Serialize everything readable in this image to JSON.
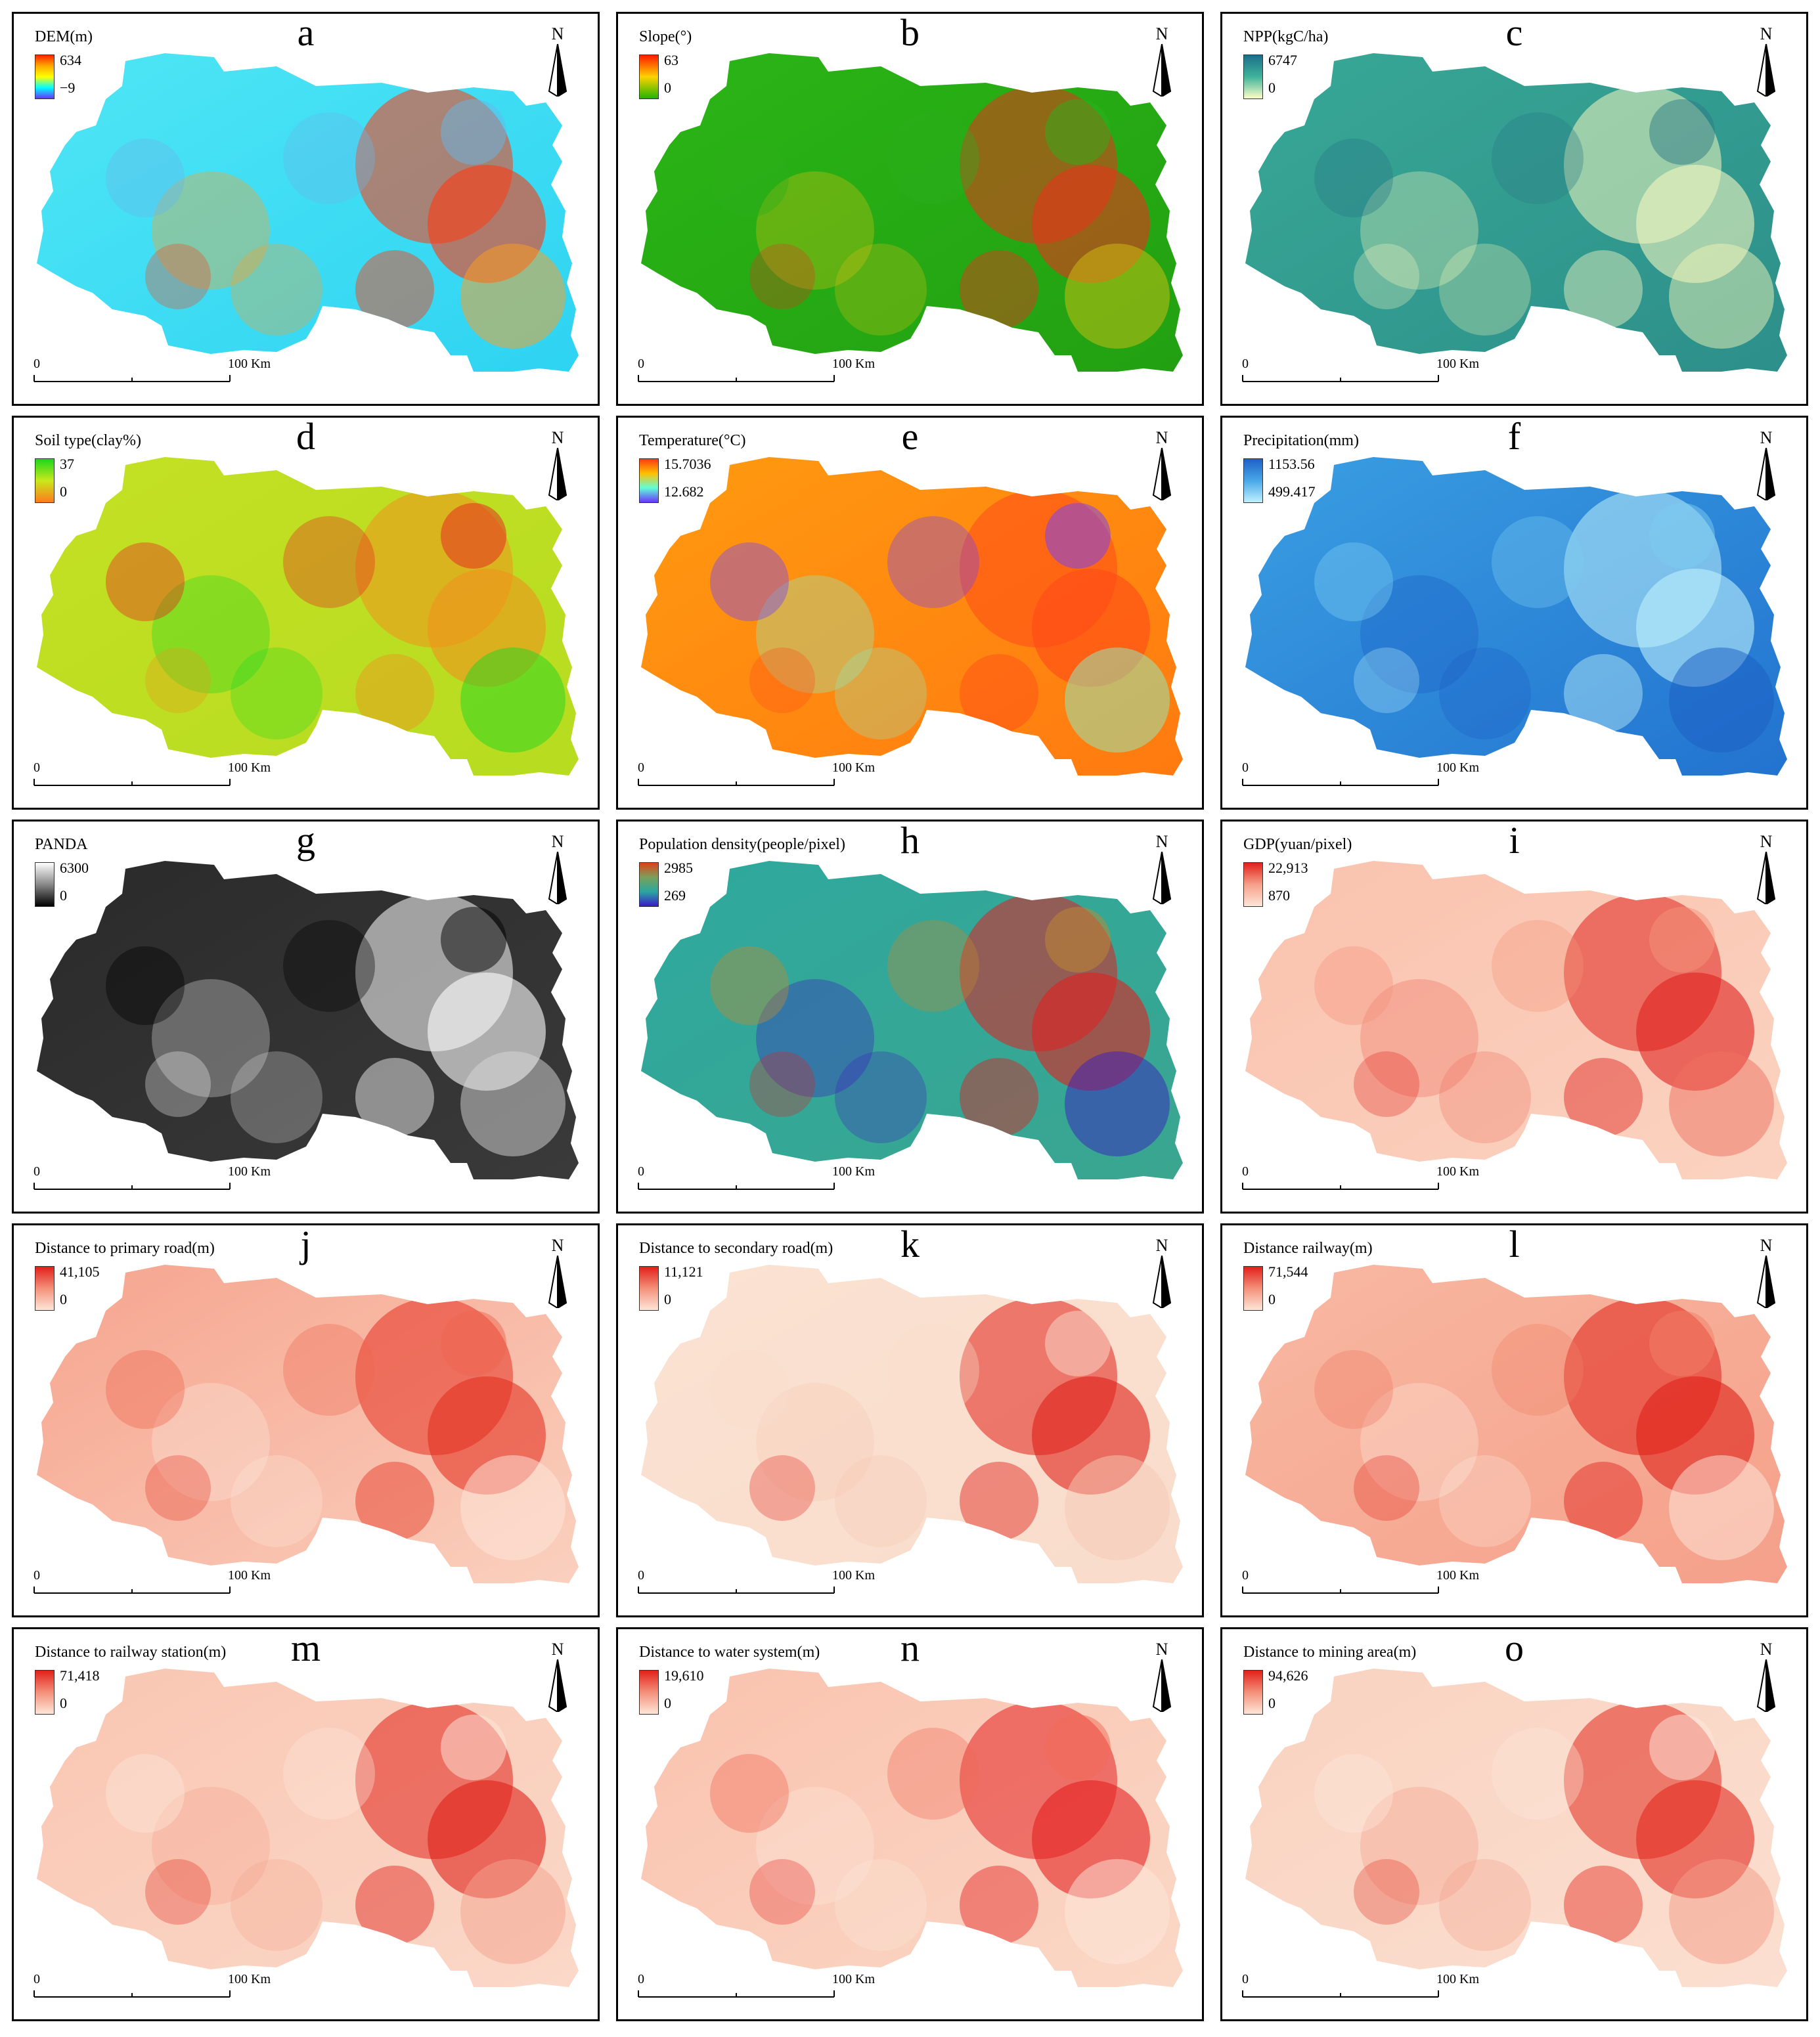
{
  "scalebar": {
    "zero": "0",
    "max": "100 Km"
  },
  "north": {
    "letter": "N"
  },
  "panels": [
    {
      "letter": "a",
      "title": "DEM(m)",
      "max": "634",
      "min": "−9",
      "ramp": [
        "#ff2200",
        "#ffaa00",
        "#ffff00",
        "#00ffff",
        "#6633ff"
      ],
      "base": [
        "#4fe6f5",
        "#2ed3f2"
      ],
      "accent": [
        "#ff3b10",
        "#ffa020",
        "#66b8e8"
      ]
    },
    {
      "letter": "b",
      "title": "Slope(°)",
      "max": "63",
      "min": "0",
      "ramp": [
        "#ff1a00",
        "#ffd200",
        "#22b500"
      ],
      "base": [
        "#2bb516",
        "#22a012"
      ],
      "accent": [
        "#e8331a",
        "#d4c012",
        "#2cb01c"
      ]
    },
    {
      "letter": "c",
      "title": "NPP(kgC/ha)",
      "max": "6747",
      "min": "0",
      "ramp": [
        "#1b6e8a",
        "#3fb39a",
        "#fdfec8"
      ],
      "base": [
        "#38a896",
        "#2d8f8a"
      ],
      "accent": [
        "#f4f7c0",
        "#eef4b6",
        "#2b7b86"
      ]
    },
    {
      "letter": "d",
      "title": "Soil type(clay%)",
      "max": "37",
      "min": "0",
      "ramp": [
        "#1bd81b",
        "#c8e81b",
        "#ff7a1b"
      ],
      "base": [
        "#c4e024",
        "#b7dc20"
      ],
      "accent": [
        "#f0921c",
        "#1fd61f",
        "#e8201f"
      ]
    },
    {
      "letter": "e",
      "title": "Temperature(°C)",
      "max": "15.7036",
      "min": "12.682",
      "ramp": [
        "#ff3a10",
        "#ffc000",
        "#60ffd8",
        "#6a33ff"
      ],
      "base": [
        "#ff9a10",
        "#ff7a10"
      ],
      "accent": [
        "#ff4a18",
        "#8cf0c0",
        "#7040ff"
      ]
    },
    {
      "letter": "f",
      "title": "Precipitation(mm)",
      "max": "1153.56",
      "min": "499.417",
      "ramp": [
        "#1f5fc8",
        "#48a8e8",
        "#bff0ff"
      ],
      "base": [
        "#3a9ee2",
        "#2273cf"
      ],
      "accent": [
        "#bdf0fb",
        "#1b5dc4",
        "#7cccf2"
      ]
    },
    {
      "letter": "g",
      "title": "PANDA",
      "max": "6300",
      "min": "0",
      "ramp": [
        "#ffffff",
        "#888888",
        "#000000"
      ],
      "base": [
        "#2a2a2a",
        "#3a3a3a"
      ],
      "accent": [
        "#ffffff",
        "#d8d8d8",
        "#000000"
      ]
    },
    {
      "letter": "h",
      "title": "Population density(people/pixel)",
      "max": "2985",
      "min": "269",
      "ramp": [
        "#e0401a",
        "#7aa05a",
        "#2aa6a0",
        "#3a1ac8"
      ],
      "base": [
        "#2ea89e",
        "#3aa690"
      ],
      "accent": [
        "#e02020",
        "#3a20c0",
        "#c08a30"
      ]
    },
    {
      "letter": "i",
      "title": "GDP(yuan/pixel)",
      "max": "22,913",
      "min": "870",
      "ramp": [
        "#e2201a",
        "#f6a08a",
        "#fde6d8"
      ],
      "base": [
        "#f9c2ae",
        "#fbd3c0"
      ],
      "accent": [
        "#e0201c",
        "#ee7060",
        "#f4947c"
      ]
    },
    {
      "letter": "j",
      "title": "Distance to primary road(m)",
      "max": "41,105",
      "min": "0",
      "ramp": [
        "#e2201a",
        "#f4907a",
        "#fde6d8"
      ],
      "base": [
        "#f6a48e",
        "#fad0be"
      ],
      "accent": [
        "#e53020",
        "#fde8dc",
        "#ee6650"
      ]
    },
    {
      "letter": "k",
      "title": "Distance to secondary road(m)",
      "max": "11,121",
      "min": "0",
      "ramp": [
        "#e2201a",
        "#f4907a",
        "#fde6d8"
      ],
      "base": [
        "#fbe2d2",
        "#f9dccb"
      ],
      "accent": [
        "#e02018",
        "#f5c8b4",
        "#f9dccb"
      ]
    },
    {
      "letter": "l",
      "title": "Distance railway(m)",
      "max": "71,544",
      "min": "0",
      "ramp": [
        "#e2201a",
        "#f4907a",
        "#fde6d8"
      ],
      "base": [
        "#f8b8a2",
        "#f5a08a"
      ],
      "accent": [
        "#e02018",
        "#fde8dc",
        "#f08068"
      ]
    },
    {
      "letter": "m",
      "title": "Distance to railway station(m)",
      "max": "71,418",
      "min": "0",
      "ramp": [
        "#e2201a",
        "#f4907a",
        "#fde6d8"
      ],
      "base": [
        "#f9c6b2",
        "#fbd8c8"
      ],
      "accent": [
        "#e02018",
        "#f4a48e",
        "#fde8dc"
      ]
    },
    {
      "letter": "n",
      "title": "Distance to water system(m)",
      "max": "19,610",
      "min": "0",
      "ramp": [
        "#e2201a",
        "#f4907a",
        "#fde6d8"
      ],
      "base": [
        "#f9c2ae",
        "#fbd8c6"
      ],
      "accent": [
        "#e42020",
        "#fde8dc",
        "#ef6a56"
      ]
    },
    {
      "letter": "o",
      "title": "Distance to mining area(m)",
      "max": "94,626",
      "min": "0",
      "ramp": [
        "#e2201a",
        "#f4907a",
        "#fde6d8"
      ],
      "base": [
        "#fad2c0",
        "#fbdfd0"
      ],
      "accent": [
        "#e22a1e",
        "#f39c86",
        "#fde8dc"
      ]
    }
  ]
}
